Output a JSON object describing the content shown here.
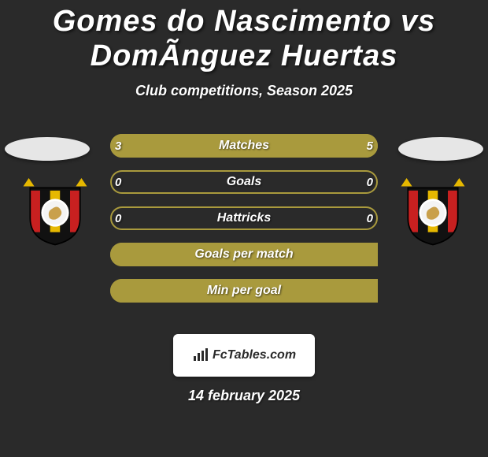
{
  "title": "Gomes do Nascimento vs DomÃ­nguez Huertas",
  "subtitle": "Club competitions, Season 2025",
  "date": "14 february 2025",
  "brand": {
    "text": "FcTables.com"
  },
  "colors": {
    "background": "#2a2a2a",
    "bar_fill": "#a99a3d",
    "bar_outline": "#a99a3d",
    "oval": "#e6e6e6",
    "text": "#ffffff",
    "brand_bg": "#ffffff",
    "brand_text": "#2a2a2a"
  },
  "badge": {
    "shield_fill": "#111111",
    "stripe_colors": [
      "#c82020",
      "#111111",
      "#e6b800",
      "#111111",
      "#c82020"
    ],
    "star_color": "#e6b800",
    "lion_color": "#c9a04b",
    "ring_color": "#ffffff"
  },
  "rows": [
    {
      "label": "Matches",
      "left_value": "3",
      "right_value": "5",
      "left_pct": 37.5,
      "right_pct": 62.5,
      "show_values": true
    },
    {
      "label": "Goals",
      "left_value": "0",
      "right_value": "0",
      "left_pct": 0,
      "right_pct": 0,
      "show_values": true
    },
    {
      "label": "Hattricks",
      "left_value": "0",
      "right_value": "0",
      "left_pct": 0,
      "right_pct": 0,
      "show_values": true
    },
    {
      "label": "Goals per match",
      "left_value": "",
      "right_value": "",
      "left_pct": 100,
      "right_pct": 0,
      "show_values": false
    },
    {
      "label": "Min per goal",
      "left_value": "",
      "right_value": "",
      "left_pct": 100,
      "right_pct": 0,
      "show_values": false
    }
  ]
}
